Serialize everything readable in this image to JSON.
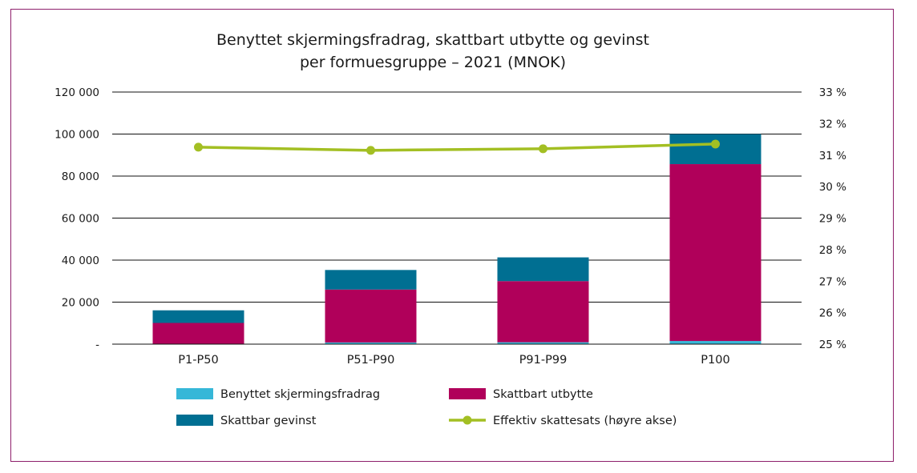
{
  "chart_data": {
    "type": "bar",
    "stacked": true,
    "title": [
      "Benyttet skjermingsfradrag, skattbart utbytte og gevinst",
      "per formuesgruppe – 2021 (MNOK)"
    ],
    "categories": [
      "P1-P50",
      "P51-P90",
      "P91-P99",
      "P100"
    ],
    "series": [
      {
        "name": "Benyttet skjermingsfradrag",
        "color": "#36b7d8",
        "values": [
          200,
          800,
          900,
          1500
        ]
      },
      {
        "name": "Skattbart utbytte",
        "color": "#b0005a",
        "values": [
          9900,
          25200,
          29100,
          84200
        ]
      },
      {
        "name": "Skattbar gevinst",
        "color": "#006f92",
        "values": [
          6000,
          9300,
          11300,
          14300
        ]
      }
    ],
    "line_series": {
      "name": "Effektiv skattesats (høyre akse)",
      "color": "#a3bf23",
      "axis": "right",
      "values": [
        31.25,
        31.15,
        31.2,
        31.35
      ]
    },
    "left_axis": {
      "ylim": [
        0,
        120000
      ],
      "ticks": [
        0,
        20000,
        40000,
        60000,
        80000,
        100000,
        120000
      ],
      "tick_labels": [
        "-",
        "20 000",
        "40 000",
        "60 000",
        "80 000",
        "100 000",
        "120 000"
      ]
    },
    "right_axis": {
      "ylim": [
        25,
        33
      ],
      "ticks": [
        25,
        26,
        27,
        28,
        29,
        30,
        31,
        32,
        33
      ],
      "tick_labels": [
        "25 %",
        "26 %",
        "27 %",
        "28 %",
        "29 %",
        "30 %",
        "31 %",
        "32 %",
        "33 %"
      ]
    },
    "grid": true,
    "legend_position": "bottom"
  },
  "colors": {
    "frame_border": "#8e1f6b",
    "gridline": "#111111"
  }
}
